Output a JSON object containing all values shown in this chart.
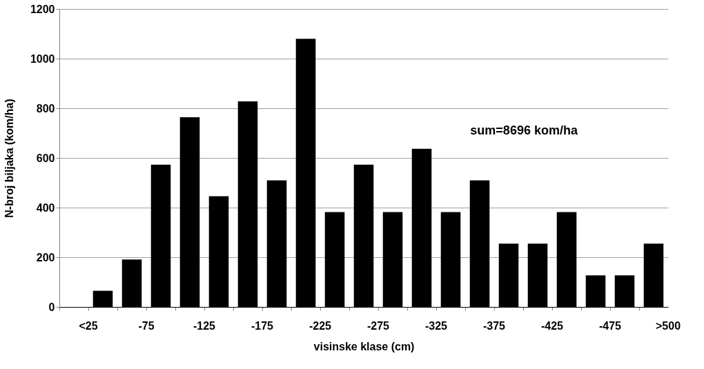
{
  "chart_data": {
    "type": "bar",
    "xlabel": "visinske klase (cm)",
    "ylabel": "N-broj biljaka (kom/ha)",
    "categories": [
      "<25",
      null,
      "-75",
      null,
      "-125",
      null,
      "-175",
      null,
      "-225",
      null,
      "-275",
      null,
      "-325",
      null,
      "-375",
      null,
      "-425",
      null,
      "-475",
      null,
      ">500"
    ],
    "values": [
      0,
      65,
      191,
      573,
      764,
      446,
      828,
      510,
      1080,
      382,
      573,
      382,
      637,
      382,
      510,
      255,
      255,
      382,
      127,
      127,
      255
    ],
    "color": "#000000",
    "ylim": [
      0,
      1200
    ],
    "yticks": [
      0,
      200,
      400,
      600,
      800,
      1000,
      1200
    ],
    "grid": "y",
    "annotations": [
      "sum=8696 kom/ha"
    ]
  }
}
